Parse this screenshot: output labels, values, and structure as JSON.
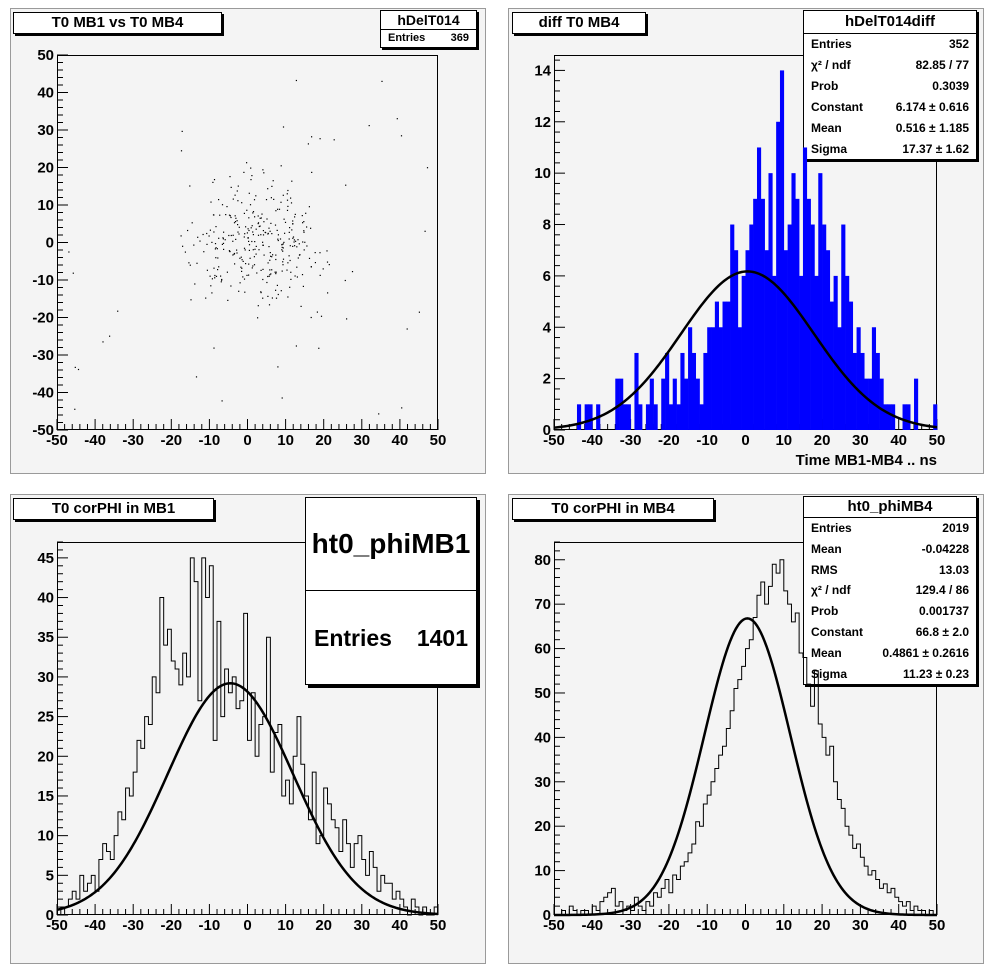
{
  "chart_data": [
    {
      "id": "p1",
      "type": "scatter",
      "title": "T0 MB1 vs T0 MB4",
      "xlim": [
        -50,
        50
      ],
      "ylim": [
        -50,
        50
      ],
      "x_ticks": [
        -50,
        -40,
        -30,
        -20,
        -10,
        0,
        10,
        20,
        30,
        40,
        50
      ],
      "y_ticks": [
        -50,
        -40,
        -30,
        -20,
        -10,
        0,
        10,
        20,
        30,
        40,
        50
      ],
      "stats": {
        "name": "hDelT014",
        "rows": [
          {
            "label": "Entries",
            "value": "369"
          }
        ]
      },
      "point_count": 369,
      "points_note": "individual points approximated: dense cloud centered near (0,0), spread ~15 in x and y"
    },
    {
      "id": "p2",
      "type": "bar",
      "title": "diff T0 MB4",
      "xlabel": "Time MB1-MB4  ..  ns",
      "xlim": [
        -50,
        50
      ],
      "ylim": [
        0,
        14.6
      ],
      "x_ticks": [
        -50,
        -40,
        -30,
        -20,
        -10,
        0,
        10,
        20,
        30,
        40,
        50
      ],
      "y_ticks": [
        0,
        2,
        4,
        6,
        8,
        10,
        12,
        14
      ],
      "bin_low": -50,
      "bin_width": 1,
      "bar_color": "#0000ff",
      "counts": [
        0,
        0,
        0,
        0,
        0,
        0,
        1,
        0,
        1,
        1,
        0,
        1,
        0,
        0,
        0,
        0,
        2,
        2,
        1,
        1,
        0,
        3,
        1,
        0,
        1,
        2,
        1,
        0,
        2,
        3,
        1,
        2,
        1,
        3,
        2,
        4,
        3,
        2,
        1,
        3,
        4,
        4,
        5,
        4,
        5,
        5,
        8,
        7,
        4,
        6,
        7,
        8,
        9,
        11,
        9,
        7,
        10,
        6,
        12,
        14,
        7,
        8,
        10,
        9,
        6,
        11,
        9,
        8,
        6,
        10,
        8,
        7,
        5,
        6,
        4,
        8,
        6,
        5,
        3,
        4,
        3,
        2,
        2,
        4,
        3,
        2,
        1,
        1,
        1,
        0,
        0,
        1,
        1,
        0,
        2,
        0,
        0,
        0,
        0,
        1
      ],
      "fit": {
        "constant": 6.174,
        "mean": 0.516,
        "sigma": 17.37
      },
      "stats": {
        "name": "hDelT014diff",
        "rows": [
          {
            "label": "Entries",
            "value": "352"
          },
          {
            "label": "χ² / ndf",
            "value": "82.85 / 77"
          },
          {
            "label": "Prob",
            "value": "0.3039"
          },
          {
            "label": "Constant",
            "value": "6.174 ± 0.616"
          },
          {
            "label": "Mean",
            "value": "0.516 ± 1.185"
          },
          {
            "label": "Sigma",
            "value": "17.37 ± 1.62"
          }
        ]
      }
    },
    {
      "id": "p3",
      "type": "line",
      "title": "T0 corPHI in MB1",
      "xlim": [
        -50,
        50
      ],
      "ylim": [
        0,
        47
      ],
      "x_ticks": [
        -50,
        -40,
        -30,
        -20,
        -10,
        0,
        10,
        20,
        30,
        40,
        50
      ],
      "y_ticks": [
        0,
        5,
        10,
        15,
        20,
        25,
        30,
        35,
        40,
        45
      ],
      "bin_low": -50,
      "bin_width": 1,
      "counts": [
        0,
        1,
        1,
        2,
        3,
        2,
        5,
        3,
        4,
        5,
        3,
        7,
        9,
        8,
        7,
        10,
        13,
        12,
        16,
        15,
        18,
        22,
        21,
        25,
        24,
        30,
        28,
        40,
        34,
        36,
        32,
        31,
        29,
        33,
        30,
        45,
        42,
        27,
        45,
        40,
        44,
        22,
        37,
        25,
        31,
        28,
        30,
        26,
        27,
        38,
        22,
        28,
        20,
        24,
        25,
        35,
        18,
        23,
        24,
        15,
        17,
        14,
        20,
        25,
        19,
        15,
        12,
        18,
        9,
        10,
        16,
        14,
        12,
        11,
        8,
        12,
        9,
        6,
        9,
        10,
        7,
        5,
        8,
        6,
        3,
        5,
        4,
        4,
        2,
        3,
        2,
        1,
        0,
        2,
        1,
        0,
        1,
        0,
        0,
        1
      ],
      "fit": {
        "constant": 29.2,
        "mean": -4.5,
        "sigma": 16.5
      },
      "stats": {
        "name": "ht0_phiMB1",
        "rows": [
          {
            "label": "Entries",
            "value": "1401"
          }
        ]
      }
    },
    {
      "id": "p4",
      "type": "line",
      "title": "T0 corPHI in MB4",
      "xlim": [
        -50,
        50
      ],
      "ylim": [
        0,
        84
      ],
      "x_ticks": [
        -50,
        -40,
        -30,
        -20,
        -10,
        0,
        10,
        20,
        30,
        40,
        50
      ],
      "y_ticks": [
        0,
        10,
        20,
        30,
        40,
        50,
        60,
        70,
        80
      ],
      "bin_low": -50,
      "bin_width": 1,
      "counts": [
        0,
        0,
        1,
        0,
        2,
        1,
        0,
        1,
        1,
        0,
        2,
        1,
        3,
        4,
        5,
        6,
        2,
        3,
        1,
        2,
        1,
        4,
        2,
        1,
        3,
        2,
        5,
        4,
        6,
        8,
        5,
        9,
        8,
        11,
        12,
        14,
        16,
        21,
        20,
        25,
        27,
        30,
        33,
        36,
        38,
        42,
        46,
        51,
        53,
        56,
        60,
        62,
        67,
        72,
        75,
        70,
        74,
        79,
        77,
        80,
        73,
        70,
        66,
        68,
        59,
        58,
        52,
        47,
        55,
        43,
        40,
        36,
        38,
        30,
        26,
        24,
        20,
        18,
        15,
        16,
        13,
        11,
        9,
        10,
        8,
        6,
        7,
        5,
        6,
        4,
        3,
        2,
        3,
        1,
        2,
        1,
        1,
        0,
        1,
        0
      ],
      "fit": {
        "constant": 66.8,
        "mean": 0.4861,
        "sigma": 11.23
      },
      "stats": {
        "name": "ht0_phiMB4",
        "rows": [
          {
            "label": "Entries",
            "value": "2019"
          },
          {
            "label": "Mean",
            "value": "-0.04228"
          },
          {
            "label": "RMS",
            "value": "13.03"
          },
          {
            "label": "χ² / ndf",
            "value": "129.4 / 86"
          },
          {
            "label": "Prob",
            "value": "0.001737"
          },
          {
            "label": "Constant",
            "value": "66.8 ± 2.0"
          },
          {
            "label": "Mean",
            "value": "0.4861 ± 0.2616"
          },
          {
            "label": "Sigma",
            "value": "11.23 ± 0.23"
          }
        ]
      }
    }
  ]
}
